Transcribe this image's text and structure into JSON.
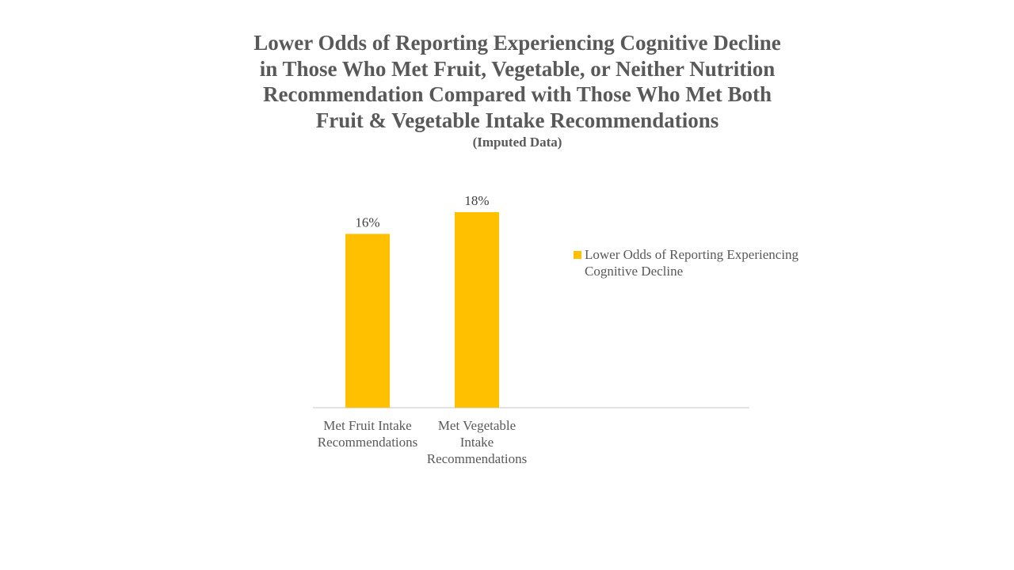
{
  "chart_data": {
    "type": "bar",
    "title": "Lower Odds of Reporting Experiencing Cognitive Decline\nin Those Who Met Fruit, Vegetable, or Neither Nutrition\nRecommendation Compared with Those Who Met Both\nFruit & Vegetable Intake Recommendations",
    "subtitle": "(Imputed Data)",
    "categories": [
      [
        "Met Fruit Intake",
        "Recommendations"
      ],
      [
        "Met Vegetable",
        "Intake",
        "Recommendations"
      ]
    ],
    "series": [
      {
        "name": "Lower Odds of Reporting Experiencing Cognitive Decline",
        "values": [
          16,
          18
        ],
        "labels": [
          "16%",
          "18%"
        ],
        "color": "#FFC000"
      }
    ],
    "xlabel": "",
    "ylabel": "",
    "grid": false,
    "legend_position": "right"
  }
}
